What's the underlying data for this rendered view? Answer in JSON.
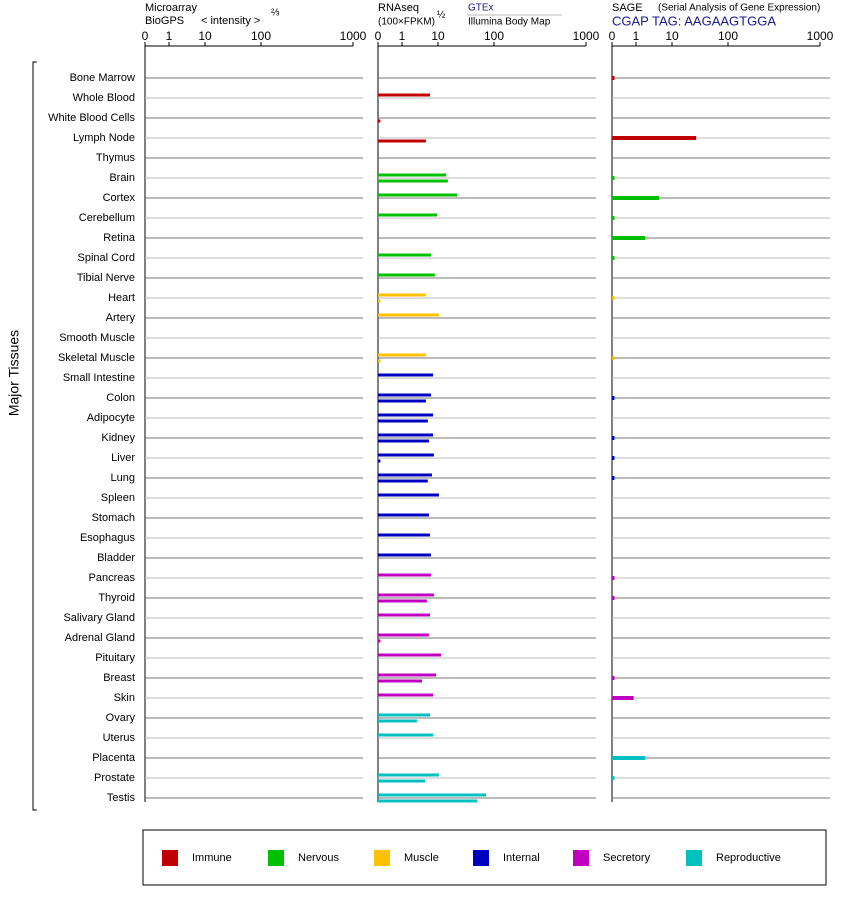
{
  "chart_data": {
    "type": "bar",
    "orientation": "horizontal",
    "ylabel": "Major Tissues",
    "categories": [
      "Bone Marrow",
      "Whole Blood",
      "White Blood Cells",
      "Lymph Node",
      "Thymus",
      "Brain",
      "Cortex",
      "Cerebellum",
      "Retina",
      "Spinal Cord",
      "Tibial Nerve",
      "Heart",
      "Artery",
      "Smooth Muscle",
      "Skeletal Muscle",
      "Small Intestine",
      "Colon",
      "Adipocyte",
      "Kidney",
      "Liver",
      "Lung",
      "Spleen",
      "Stomach",
      "Esophagus",
      "Bladder",
      "Pancreas",
      "Thyroid",
      "Salivary Gland",
      "Adrenal Gland",
      "Pituitary",
      "Breast",
      "Skin",
      "Ovary",
      "Uterus",
      "Placenta",
      "Prostate",
      "Testis"
    ],
    "category_groups": [
      0,
      0,
      0,
      0,
      0,
      1,
      1,
      1,
      1,
      1,
      1,
      2,
      2,
      2,
      2,
      3,
      3,
      3,
      3,
      3,
      3,
      3,
      3,
      3,
      3,
      4,
      4,
      4,
      4,
      4,
      4,
      4,
      5,
      5,
      5,
      5,
      5
    ],
    "groups": [
      {
        "name": "Immune",
        "color": "#c00000"
      },
      {
        "name": "Nervous",
        "color": "#00c000"
      },
      {
        "name": "Muscle",
        "color": "#ffc000"
      },
      {
        "name": "Internal",
        "color": "#0000c0"
      },
      {
        "name": "Secretory",
        "color": "#c000c0"
      },
      {
        "name": "Reproductive",
        "color": "#00c0c0"
      }
    ],
    "panels": [
      {
        "title": "Microarray",
        "subtitle": "BioGPS",
        "unit": "< intensity >",
        "unit_power": "⅔",
        "xlim": [
          0,
          1000
        ],
        "xticks": [
          0,
          1,
          10,
          100,
          1000
        ],
        "series": []
      },
      {
        "title": "RNAseq",
        "unit": "(100×FPKM)",
        "unit_power": "½",
        "xlim": [
          0,
          1000
        ],
        "xticks": [
          0,
          1,
          10,
          100,
          1000
        ],
        "series": [
          {
            "name": "GTEx",
            "values": [
              null,
              6.0,
              null,
              null,
              null,
              14,
              22,
              9.4,
              null,
              6.4,
              8.2,
              4.6,
              10.4,
              null,
              4.6,
              7.3,
              6.4,
              7.3,
              7.3,
              7.7,
              6.8,
              10.4,
              5.6,
              6.0,
              6.4,
              6.4,
              7.7,
              6.0,
              5.6,
              11.3,
              8.8,
              7.3,
              6.0,
              7.3,
              null,
              10.4,
              72
            ]
          },
          {
            "name": "Illumina Body Map",
            "values": [
              null,
              null,
              0.1,
              4.6,
              null,
              15,
              null,
              null,
              null,
              null,
              null,
              0.1,
              null,
              null,
              0.1,
              null,
              4.6,
              5.2,
              5.6,
              0.1,
              5.2,
              null,
              null,
              null,
              null,
              null,
              4.9,
              null,
              0.1,
              null,
              3.6,
              null,
              2.6,
              null,
              null,
              4.4,
              50
            ]
          }
        ]
      },
      {
        "title": "SAGE",
        "subtitle": "(Serial Analysis of Gene Expression)",
        "tag": "CGAP TAG: AAGAAGTGGA",
        "xlim": [
          0,
          1000
        ],
        "xticks": [
          0,
          1,
          10,
          100,
          1000
        ],
        "series": [
          {
            "values": [
              0.1,
              null,
              null,
              27,
              null,
              0.1,
              4.4,
              0.1,
              1.8,
              0.1,
              null,
              0.1,
              null,
              null,
              0.1,
              null,
              0.1,
              null,
              0.1,
              0.1,
              0.1,
              null,
              null,
              null,
              null,
              0.1,
              0.1,
              null,
              null,
              null,
              0.1,
              0.9,
              null,
              null,
              1.8,
              0.1,
              null
            ]
          }
        ]
      }
    ]
  }
}
